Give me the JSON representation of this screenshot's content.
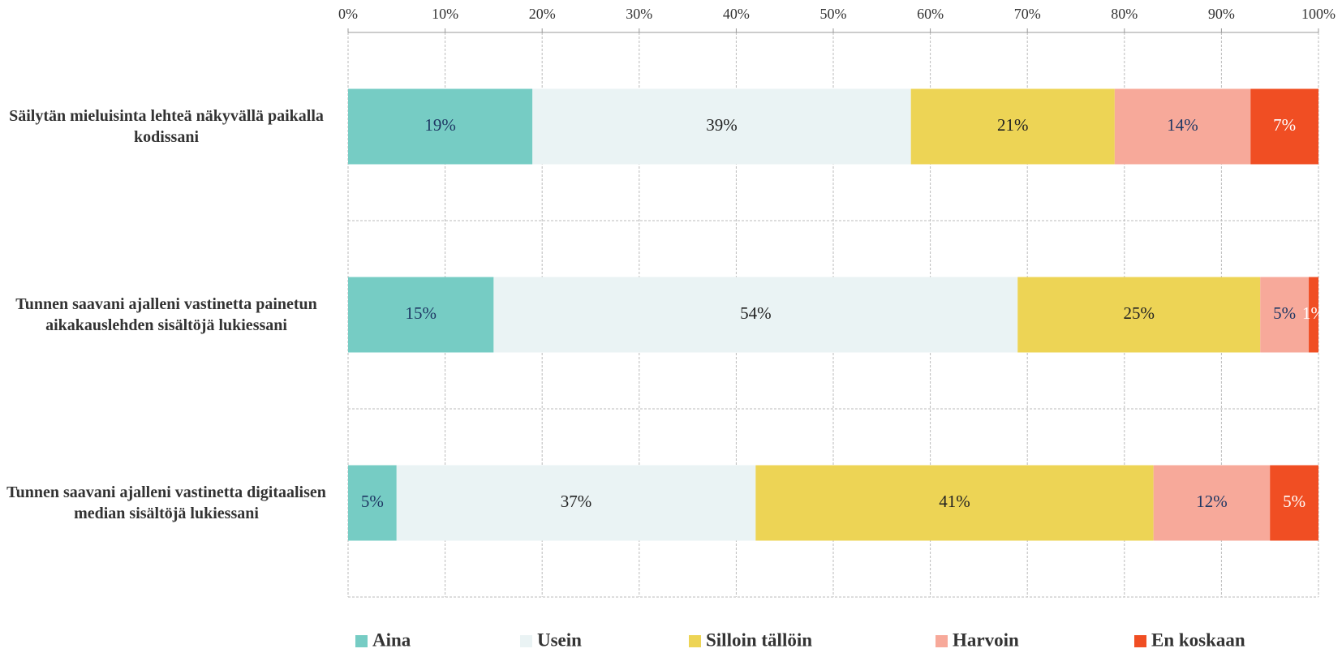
{
  "chart_data": {
    "type": "stacked_barh",
    "categories": [
      "Säilytän mieluisinta lehteä näkyvällä paikalla kodissani",
      "Tunnen saavani ajalleni vastinetta painetun aikakauslehden sisältöjä lukiessani",
      "Tunnen saavani ajalleni vastinetta digitaalisen median sisältöjä lukiessani"
    ],
    "series": [
      {
        "name": "Aina",
        "color": "#76ccc4",
        "values": [
          19,
          15,
          5
        ],
        "value_labels": [
          "19%",
          "15%",
          "5%"
        ]
      },
      {
        "name": "Usein",
        "color": "#eaf3f4",
        "values": [
          39,
          54,
          37
        ],
        "value_labels": [
          "39%",
          "54%",
          "37%"
        ]
      },
      {
        "name": "Silloin tällöin",
        "color": "#edd455",
        "values": [
          21,
          25,
          41
        ],
        "value_labels": [
          "21%",
          "25%",
          "41%"
        ]
      },
      {
        "name": "Harvoin",
        "color": "#f7a99a",
        "values": [
          14,
          5,
          12
        ],
        "value_labels": [
          "14%",
          "5%",
          "12%"
        ]
      },
      {
        "name": "En koskaan",
        "color": "#f04e23",
        "values": [
          7,
          1,
          5
        ],
        "value_labels": [
          "7%",
          "1%",
          "5%"
        ]
      }
    ],
    "xlim": [
      0,
      100
    ],
    "xticks": [
      {
        "value": 0,
        "label": "0%"
      },
      {
        "value": 10,
        "label": "10%"
      },
      {
        "value": 20,
        "label": "20%"
      },
      {
        "value": 30,
        "label": "30%"
      },
      {
        "value": 40,
        "label": "40%"
      },
      {
        "value": 50,
        "label": "50%"
      },
      {
        "value": 60,
        "label": "60%"
      },
      {
        "value": 70,
        "label": "70%"
      },
      {
        "value": 80,
        "label": "80%"
      },
      {
        "value": 90,
        "label": "90%"
      },
      {
        "value": 100,
        "label": "100%"
      }
    ],
    "grid": true,
    "legend": "bottom"
  }
}
